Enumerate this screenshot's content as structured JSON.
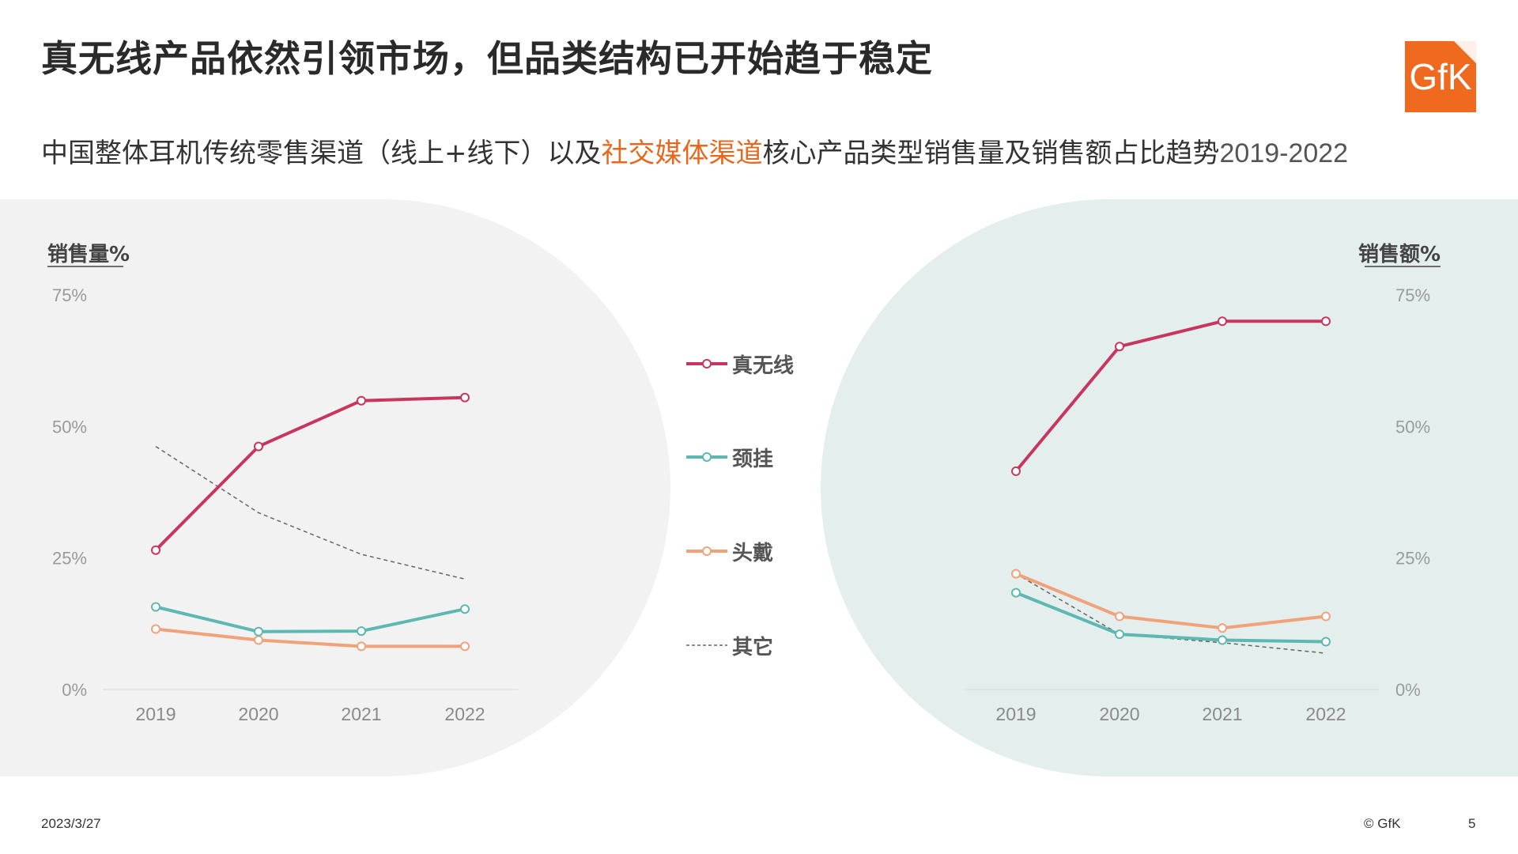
{
  "title": "真无线产品依然引领市场，但品类结构已开始趋于稳定",
  "subtitle": {
    "part1": "中国整体耳机传统零售渠道（线上+线下）以及",
    "highlight": "社交媒体渠道",
    "part2": "核心产品类型销售量及销售额占比趋势",
    "years": "2019-2022"
  },
  "logo": {
    "text": "GfK",
    "color": "#ef6a1f"
  },
  "colors": {
    "true_wireless": "#c7365f",
    "neckband": "#5cb8b0",
    "headphone": "#f0a27a",
    "other": "#666666"
  },
  "chart_data": [
    {
      "type": "line",
      "title": "销售量%",
      "categories": [
        "2019",
        "2020",
        "2021",
        "2022"
      ],
      "ylim": [
        0,
        75
      ],
      "yticks": [
        "0%",
        "25%",
        "50%",
        "75%"
      ],
      "series": [
        {
          "name": "真无线",
          "values": [
            26.5,
            46.2,
            54.9,
            55.5
          ]
        },
        {
          "name": "颈挂",
          "values": [
            15.7,
            11.0,
            11.1,
            15.3
          ]
        },
        {
          "name": "头戴",
          "values": [
            11.5,
            9.4,
            8.2,
            8.2
          ]
        },
        {
          "name": "其它",
          "values": [
            46.2,
            33.6,
            25.7,
            21.0
          ]
        }
      ]
    },
    {
      "type": "line",
      "title": "销售额%",
      "categories": [
        "2019",
        "2020",
        "2021",
        "2022"
      ],
      "ylim": [
        0,
        75
      ],
      "yticks": [
        "0%",
        "25%",
        "50%",
        "75%"
      ],
      "series": [
        {
          "name": "真无线",
          "values": [
            41.5,
            65.2,
            70.0,
            70.0
          ]
        },
        {
          "name": "颈挂",
          "values": [
            18.4,
            10.5,
            9.4,
            9.1
          ]
        },
        {
          "name": "头戴",
          "values": [
            22.0,
            13.9,
            11.7,
            13.9
          ]
        },
        {
          "name": "其它",
          "values": [
            22.0,
            10.5,
            8.9,
            6.9
          ]
        }
      ]
    }
  ],
  "legend": {
    "items": [
      "真无线",
      "颈挂",
      "头戴",
      "其它"
    ]
  },
  "footer": {
    "date": "2023/3/27",
    "copyright": "© GfK",
    "page": "5"
  }
}
